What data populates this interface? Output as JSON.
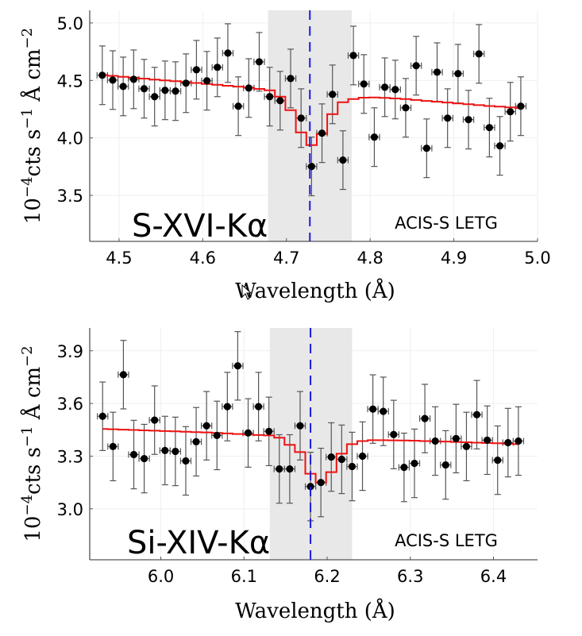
{
  "chart_data": [
    {
      "type": "scatter",
      "panel": "top",
      "annotation": "S-XVI-Kα",
      "instrument_label": "ACIS-S LETG",
      "xlabel": "Wavelength (Å)",
      "ylabel": "10^-4 cts s^-1 Å cm^-2",
      "ylabel_parts": {
        "base": "10",
        "exp1": "−4",
        "mid": "cts s",
        "exp2": "−1",
        "mid2": " Å cm",
        "exp3": "−2"
      },
      "xlim": [
        4.465,
        5.0
      ],
      "ylim": [
        3.1,
        5.11
      ],
      "xticks": [
        4.5,
        4.6,
        4.7,
        4.8,
        4.9,
        5.0
      ],
      "xtick_labels": [
        "4.5",
        "4.6",
        "4.7",
        "4.8",
        "4.9",
        "5.0"
      ],
      "yticks": [
        3.5,
        4.0,
        4.5,
        5.0
      ],
      "ytick_labels": [
        "3.5",
        "4.0",
        "4.5",
        "5.0"
      ],
      "grid": true,
      "shaded_region": [
        4.678,
        4.778
      ],
      "line_center": 4.728,
      "colors": {
        "data": "#000000",
        "errorbar": "#555555",
        "model": "#ee1111",
        "line": "#1a1adf",
        "shade": "#e8e8e8"
      },
      "x_start": 4.48,
      "x_step": 0.0125,
      "x_halfwidth": 0.00625,
      "y_err": 0.255,
      "values": [
        4.545,
        4.503,
        4.448,
        4.51,
        4.428,
        4.359,
        4.414,
        4.407,
        4.476,
        4.593,
        4.497,
        4.614,
        4.738,
        4.276,
        4.434,
        4.662,
        4.359,
        4.324,
        4.517,
        4.172,
        3.752,
        4.041,
        4.379,
        3.807,
        4.717,
        4.469,
        4.007,
        4.441,
        4.421,
        4.262,
        4.628,
        3.91,
        4.572,
        4.172,
        4.559,
        4.159,
        4.731,
        4.09,
        3.931,
        4.228,
        4.276
      ],
      "model": [
        4.548,
        4.54,
        4.532,
        4.524,
        4.516,
        4.508,
        4.5,
        4.493,
        4.486,
        4.478,
        4.47,
        4.462,
        4.454,
        4.446,
        4.438,
        4.426,
        4.414,
        4.359,
        4.241,
        4.048,
        3.938,
        4.034,
        4.207,
        4.31,
        4.338,
        4.35,
        4.352,
        4.348,
        4.343,
        4.338,
        4.33,
        4.322,
        4.315,
        4.308,
        4.3,
        4.293,
        4.285,
        4.278,
        4.272,
        4.266,
        4.26
      ]
    },
    {
      "type": "scatter",
      "panel": "bottom",
      "annotation": "Si-XIV-Kα",
      "instrument_label": "ACIS-S LETG",
      "xlabel": "Wavelength (Å)",
      "ylabel": "10^-4 cts s^-1 Å cm^-2",
      "ylabel_parts": {
        "base": "10",
        "exp1": "−4",
        "mid": "cts s",
        "exp2": "−1",
        "mid2": " Å cm",
        "exp3": "−2"
      },
      "xlim": [
        5.9145,
        6.453
      ],
      "ylim": [
        2.71,
        4.03
      ],
      "xticks": [
        6.0,
        6.1,
        6.2,
        6.3,
        6.4
      ],
      "xtick_labels": [
        "6.0",
        "6.1",
        "6.2",
        "6.3",
        "6.4"
      ],
      "yticks": [
        3.0,
        3.3,
        3.6,
        3.9
      ],
      "ytick_labels": [
        "3.0",
        "3.3",
        "3.6",
        "3.9"
      ],
      "grid": true,
      "shaded_region": [
        6.131,
        6.23
      ],
      "line_center": 6.18,
      "colors": {
        "data": "#000000",
        "errorbar": "#555555",
        "model": "#ee1111",
        "line": "#1a1adf",
        "shade": "#e8e8e8"
      },
      "x_start": 5.93,
      "x_step": 0.0125,
      "x_halfwidth": 0.00625,
      "y_err": 0.195,
      "values": [
        3.527,
        3.355,
        3.764,
        3.309,
        3.286,
        3.505,
        3.332,
        3.327,
        3.273,
        3.382,
        3.473,
        3.418,
        3.582,
        3.814,
        3.432,
        3.582,
        3.441,
        3.227,
        3.227,
        3.473,
        3.127,
        3.15,
        3.295,
        3.282,
        3.241,
        3.3,
        3.568,
        3.555,
        3.423,
        3.236,
        3.259,
        3.514,
        3.386,
        3.25,
        3.4,
        3.355,
        3.536,
        3.391,
        3.277,
        3.377,
        3.386
      ],
      "model": [
        3.455,
        3.453,
        3.451,
        3.449,
        3.447,
        3.445,
        3.443,
        3.441,
        3.439,
        3.437,
        3.435,
        3.432,
        3.429,
        3.426,
        3.423,
        3.42,
        3.418,
        3.405,
        3.364,
        3.323,
        3.2,
        3.15,
        3.209,
        3.314,
        3.368,
        3.386,
        3.391,
        3.391,
        3.39,
        3.389,
        3.388,
        3.386,
        3.385,
        3.383,
        3.381,
        3.379,
        3.377,
        3.375,
        3.373,
        3.371,
        3.368
      ]
    }
  ]
}
